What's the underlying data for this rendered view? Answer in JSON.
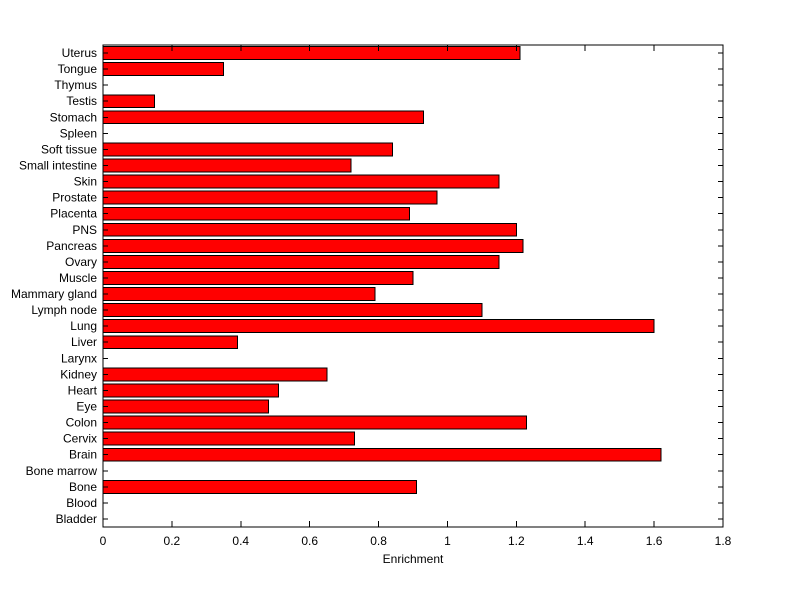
{
  "chart_data": {
    "type": "bar",
    "orientation": "horizontal",
    "title": "",
    "xlabel": "Enrichment",
    "ylabel": "",
    "xlim": [
      0,
      1.8
    ],
    "xticks": [
      0,
      0.2,
      0.4,
      0.6,
      0.8,
      1.0,
      1.2,
      1.4,
      1.6,
      1.8
    ],
    "xtick_labels": [
      "0",
      "0.2",
      "0.4",
      "0.6",
      "0.8",
      "1",
      "1.2",
      "1.4",
      "1.6",
      "1.8"
    ],
    "grid": false,
    "legend": false,
    "bar_color": "#ff0000",
    "bar_edge_color": "#000000",
    "axis_color": "#000000",
    "background_color": "#ffffff",
    "categories": [
      "Uterus",
      "Tongue",
      "Thymus",
      "Testis",
      "Stomach",
      "Spleen",
      "Soft tissue",
      "Small intestine",
      "Skin",
      "Prostate",
      "Placenta",
      "PNS",
      "Pancreas",
      "Ovary",
      "Muscle",
      "Mammary gland",
      "Lymph node",
      "Lung",
      "Liver",
      "Larynx",
      "Kidney",
      "Heart",
      "Eye",
      "Colon",
      "Cervix",
      "Brain",
      "Bone marrow",
      "Bone",
      "Blood",
      "Bladder"
    ],
    "values": [
      1.21,
      0.35,
      0,
      0.15,
      0.93,
      0,
      0.84,
      0.72,
      1.15,
      0.97,
      0.89,
      1.2,
      1.22,
      1.15,
      0.9,
      0.79,
      1.1,
      1.6,
      0.39,
      0,
      0.65,
      0.51,
      0.48,
      1.23,
      0.73,
      1.62,
      0,
      0.91,
      0,
      0
    ]
  }
}
